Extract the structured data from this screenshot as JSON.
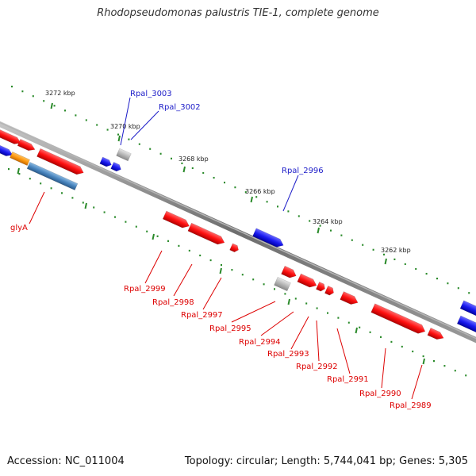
{
  "title": "Rhodopseudomonas palustris TIE-1, complete genome",
  "footer": {
    "accession": "Accession: NC_011004",
    "summary": "Topology: circular; Length: 5,744,041 bp; Genes: 5,305"
  },
  "scale": {
    "ticks": [
      "3272 kbp",
      "3270 kbp",
      "3268 kbp",
      "3266 kbp",
      "3264 kbp",
      "3262 kbp"
    ]
  },
  "genes": {
    "forward": [
      "Rpal_3003",
      "Rpal_3002",
      "Rpal_2996"
    ],
    "reverse": [
      "glyA",
      "Rpal_2999",
      "Rpal_2998",
      "Rpal_2997",
      "Rpal_2995",
      "Rpal_2994",
      "Rpal_2993",
      "Rpal_2992",
      "Rpal_2991",
      "Rpal_2990",
      "Rpal_2989"
    ]
  },
  "colors": {
    "forward_gene": "#1a1af0",
    "reverse_gene": "#ff1010",
    "forward_label": "#1c1cc8",
    "reverse_label": "#dd0000",
    "backbone": "#808080",
    "tick": "#2a8a2a",
    "other_feature": "#b8b8b8",
    "orange_feature": "#ff9a10",
    "steel_feature": "#4a86bf"
  }
}
